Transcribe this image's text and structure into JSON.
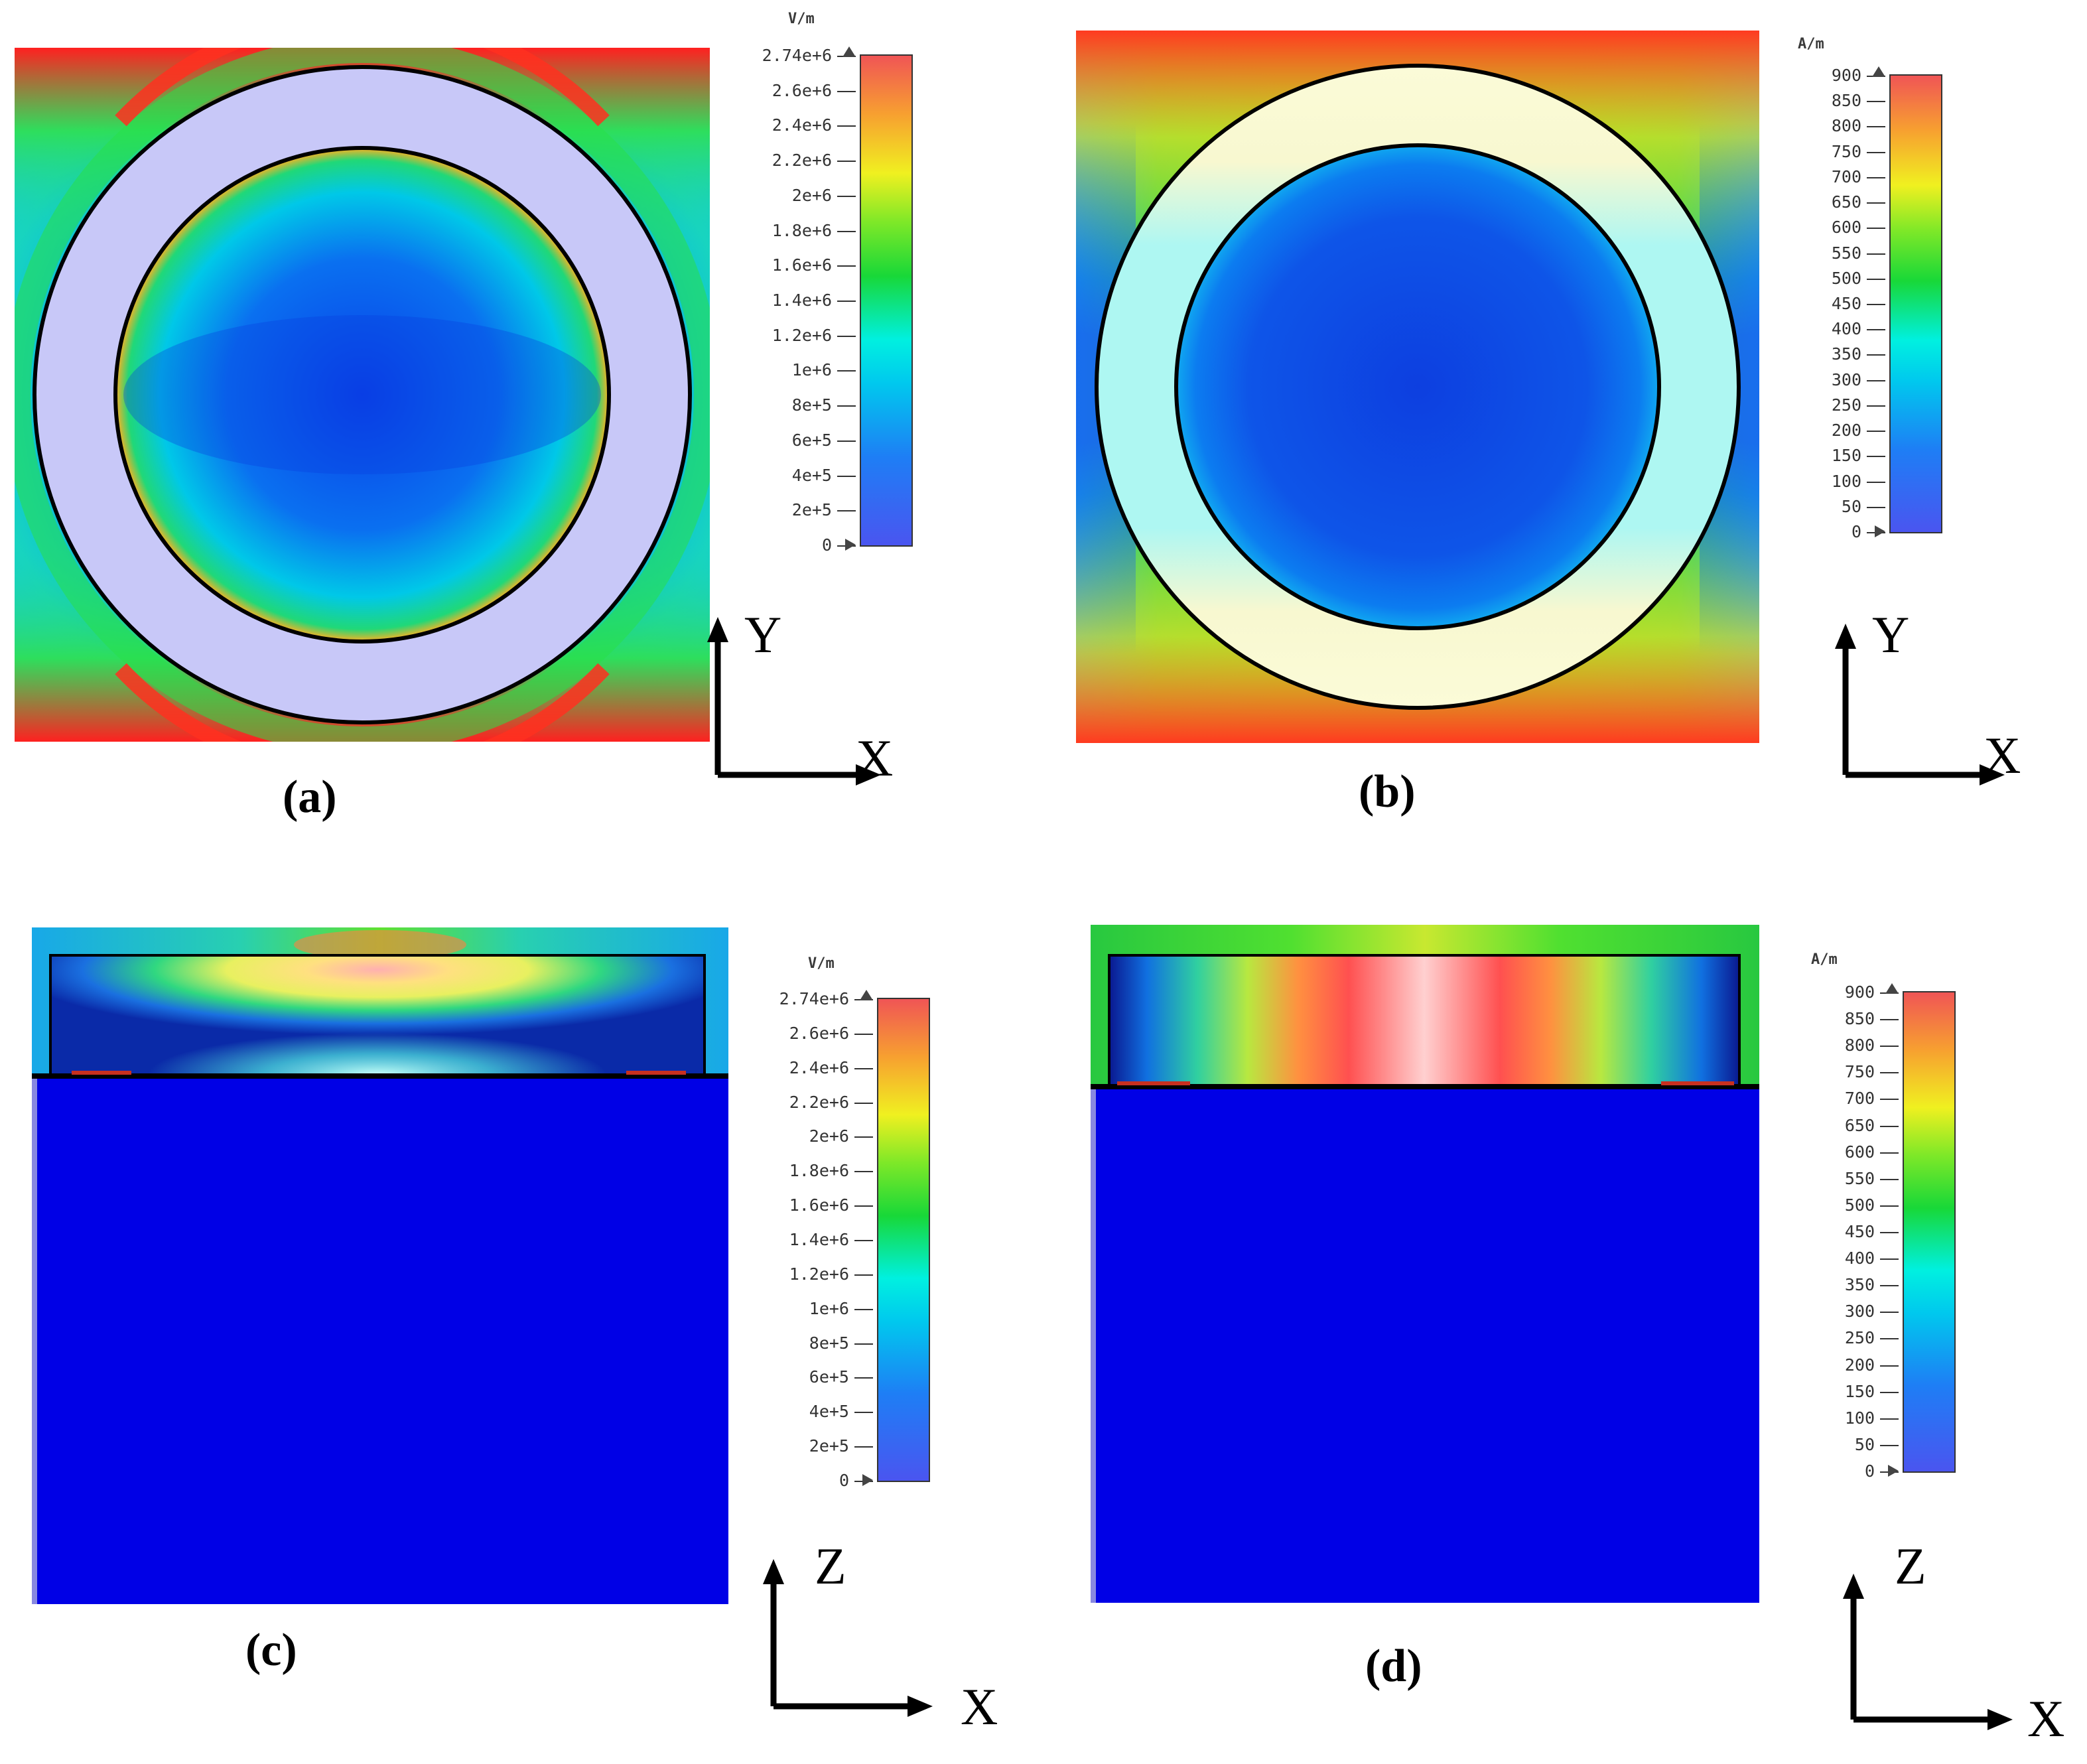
{
  "panels": {
    "a": {
      "caption": "(a)",
      "axis_h": "X",
      "axis_v": "Y"
    },
    "b": {
      "caption": "(b)",
      "axis_h": "X",
      "axis_v": "Y"
    },
    "c": {
      "caption": "(c)",
      "axis_h": "X",
      "axis_v": "Z"
    },
    "d": {
      "caption": "(d)",
      "axis_h": "X",
      "axis_v": "Z"
    }
  },
  "legend_e": {
    "unit": "V/m",
    "ticks": [
      "2.74e+6",
      "2.6e+6",
      "2.4e+6",
      "2.2e+6",
      "2e+6",
      "1.8e+6",
      "1.6e+6",
      "1.4e+6",
      "1.2e+6",
      "1e+6",
      "8e+5",
      "6e+5",
      "4e+5",
      "2e+5",
      "0"
    ]
  },
  "legend_h": {
    "unit": "A/m",
    "ticks": [
      "900",
      "850",
      "800",
      "750",
      "700",
      "650",
      "600",
      "550",
      "500",
      "450",
      "400",
      "350",
      "300",
      "250",
      "200",
      "150",
      "100",
      "50",
      "0"
    ]
  },
  "colors": {
    "scale": [
      "#4a55f0",
      "#1e7ef5",
      "#00c8ee",
      "#00f0e0",
      "#18d838",
      "#7ee828",
      "#f0f020",
      "#f7a030",
      "#f05555"
    ],
    "deep_blue": "#0000e6",
    "ring_a": "#c8c8f8",
    "ring_b": "#aef7f2"
  }
}
